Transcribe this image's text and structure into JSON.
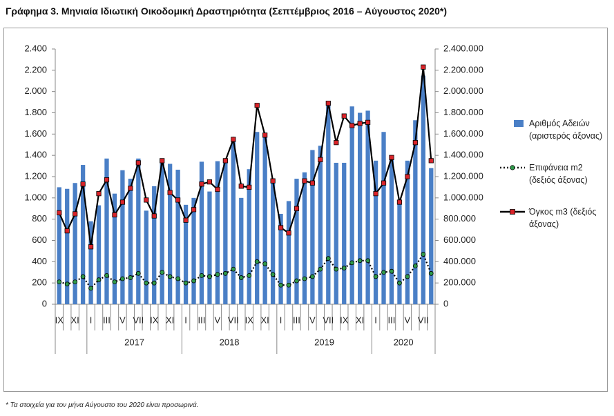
{
  "chart_data": {
    "type": "bar",
    "title": "Γράφημα 3. Μηνιαία Ιδιωτική Οικοδομική Δραστηριότητα (Σεπτέμβριος 2016 – Αύγουστος 2020*)",
    "footnote": "* Τα στοιχεία για τον μήνα Αύγουστο του 2020 είναι προσωρινά.",
    "categories": [
      "IX",
      null,
      "XI",
      null,
      "I",
      null,
      "III",
      null,
      "V",
      null,
      "VII",
      null,
      "IX",
      null,
      "XI",
      null,
      "I",
      null,
      "III",
      null,
      "V",
      null,
      "VII",
      null,
      "IX",
      null,
      "XI",
      null,
      "I",
      null,
      "III",
      null,
      "V",
      null,
      "VII",
      null,
      "IX",
      null,
      "XI",
      null,
      "I",
      null,
      "III",
      null,
      "V",
      null,
      "VII",
      null
    ],
    "groups": [
      {
        "label": null,
        "count": 4
      },
      {
        "label": "2017",
        "count": 12
      },
      {
        "label": "2018",
        "count": 12
      },
      {
        "label": "2019",
        "count": 12
      },
      {
        "label": "2020",
        "count": 8
      }
    ],
    "series": [
      {
        "name": "Αριθμός Αδειών (αριστερός άξονας)",
        "type": "bar",
        "color": "#4a7fc6",
        "values": [
          1100,
          1085,
          1140,
          1310,
          780,
          930,
          1370,
          1040,
          1260,
          1180,
          1370,
          880,
          1110,
          1330,
          1320,
          1265,
          935,
          1000,
          1340,
          1060,
          1345,
          1350,
          1540,
          1000,
          1270,
          1620,
          1610,
          1180,
          850,
          970,
          1180,
          1240,
          1450,
          1490,
          1880,
          1330,
          1330,
          1860,
          1800,
          1820,
          1350,
          1620,
          1380,
          940,
          1350,
          1730,
          2150,
          1280
        ]
      },
      {
        "name": "Επιφάνεια m2 (δεξιός άξονας)",
        "type": "line",
        "axis": "y2",
        "color": "#000000",
        "line_style": "dotted",
        "marker": "circle",
        "marker_color": "#2e9a4a",
        "values": [
          210000,
          190000,
          210000,
          260000,
          150000,
          230000,
          270000,
          210000,
          240000,
          250000,
          290000,
          200000,
          200000,
          300000,
          260000,
          240000,
          200000,
          220000,
          270000,
          260000,
          280000,
          290000,
          330000,
          250000,
          270000,
          400000,
          380000,
          280000,
          180000,
          180000,
          220000,
          240000,
          260000,
          330000,
          430000,
          330000,
          340000,
          390000,
          410000,
          410000,
          260000,
          300000,
          310000,
          200000,
          260000,
          360000,
          470000,
          290000
        ]
      },
      {
        "name": "Όγκος m3 (δεξιός άξονας)",
        "type": "line",
        "axis": "y2",
        "color": "#000000",
        "line_style": "solid",
        "marker": "square",
        "marker_color": "#d9242a",
        "values": [
          860000,
          690000,
          850000,
          1130000,
          540000,
          1040000,
          1170000,
          840000,
          960000,
          1090000,
          1330000,
          980000,
          830000,
          1350000,
          1050000,
          980000,
          790000,
          890000,
          1130000,
          1150000,
          1080000,
          1350000,
          1550000,
          1110000,
          1100000,
          1870000,
          1590000,
          1160000,
          720000,
          670000,
          900000,
          1160000,
          1140000,
          1360000,
          1890000,
          1520000,
          1770000,
          1680000,
          1700000,
          1710000,
          1040000,
          1140000,
          1380000,
          960000,
          1200000,
          1520000,
          2230000,
          1350000
        ]
      }
    ],
    "ylim": [
      0,
      2400
    ],
    "yticks": [
      0,
      200,
      400,
      600,
      800,
      {
        "value": 1000,
        "label": "1.000"
      },
      {
        "value": 1200,
        "label": "1.200"
      },
      {
        "value": 1400,
        "label": "1.400"
      },
      {
        "value": 1600,
        "label": "1.600"
      },
      {
        "value": 1800,
        "label": "1.800"
      },
      {
        "value": 2000,
        "label": "2.000"
      },
      {
        "value": 2200,
        "label": "2.200"
      },
      {
        "value": 2400,
        "label": "2.400"
      }
    ],
    "y2lim": [
      0,
      2400000
    ],
    "y2ticks": [
      0,
      {
        "value": 200000,
        "label": "200.000"
      },
      {
        "value": 400000,
        "label": "400.000"
      },
      {
        "value": 600000,
        "label": "600.000"
      },
      {
        "value": 800000,
        "label": "800.000"
      },
      {
        "value": 1000000,
        "label": "1.000.000"
      },
      {
        "value": 1200000,
        "label": "1.200.000"
      },
      {
        "value": 1400000,
        "label": "1.400.000"
      },
      {
        "value": 1600000,
        "label": "1.600.000"
      },
      {
        "value": 1800000,
        "label": "1.800.000"
      },
      {
        "value": 2000000,
        "label": "2.000.000"
      },
      {
        "value": 2200000,
        "label": "2.200.000"
      },
      {
        "value": 2400000,
        "label": "2.400.000"
      }
    ],
    "grid": false
  }
}
